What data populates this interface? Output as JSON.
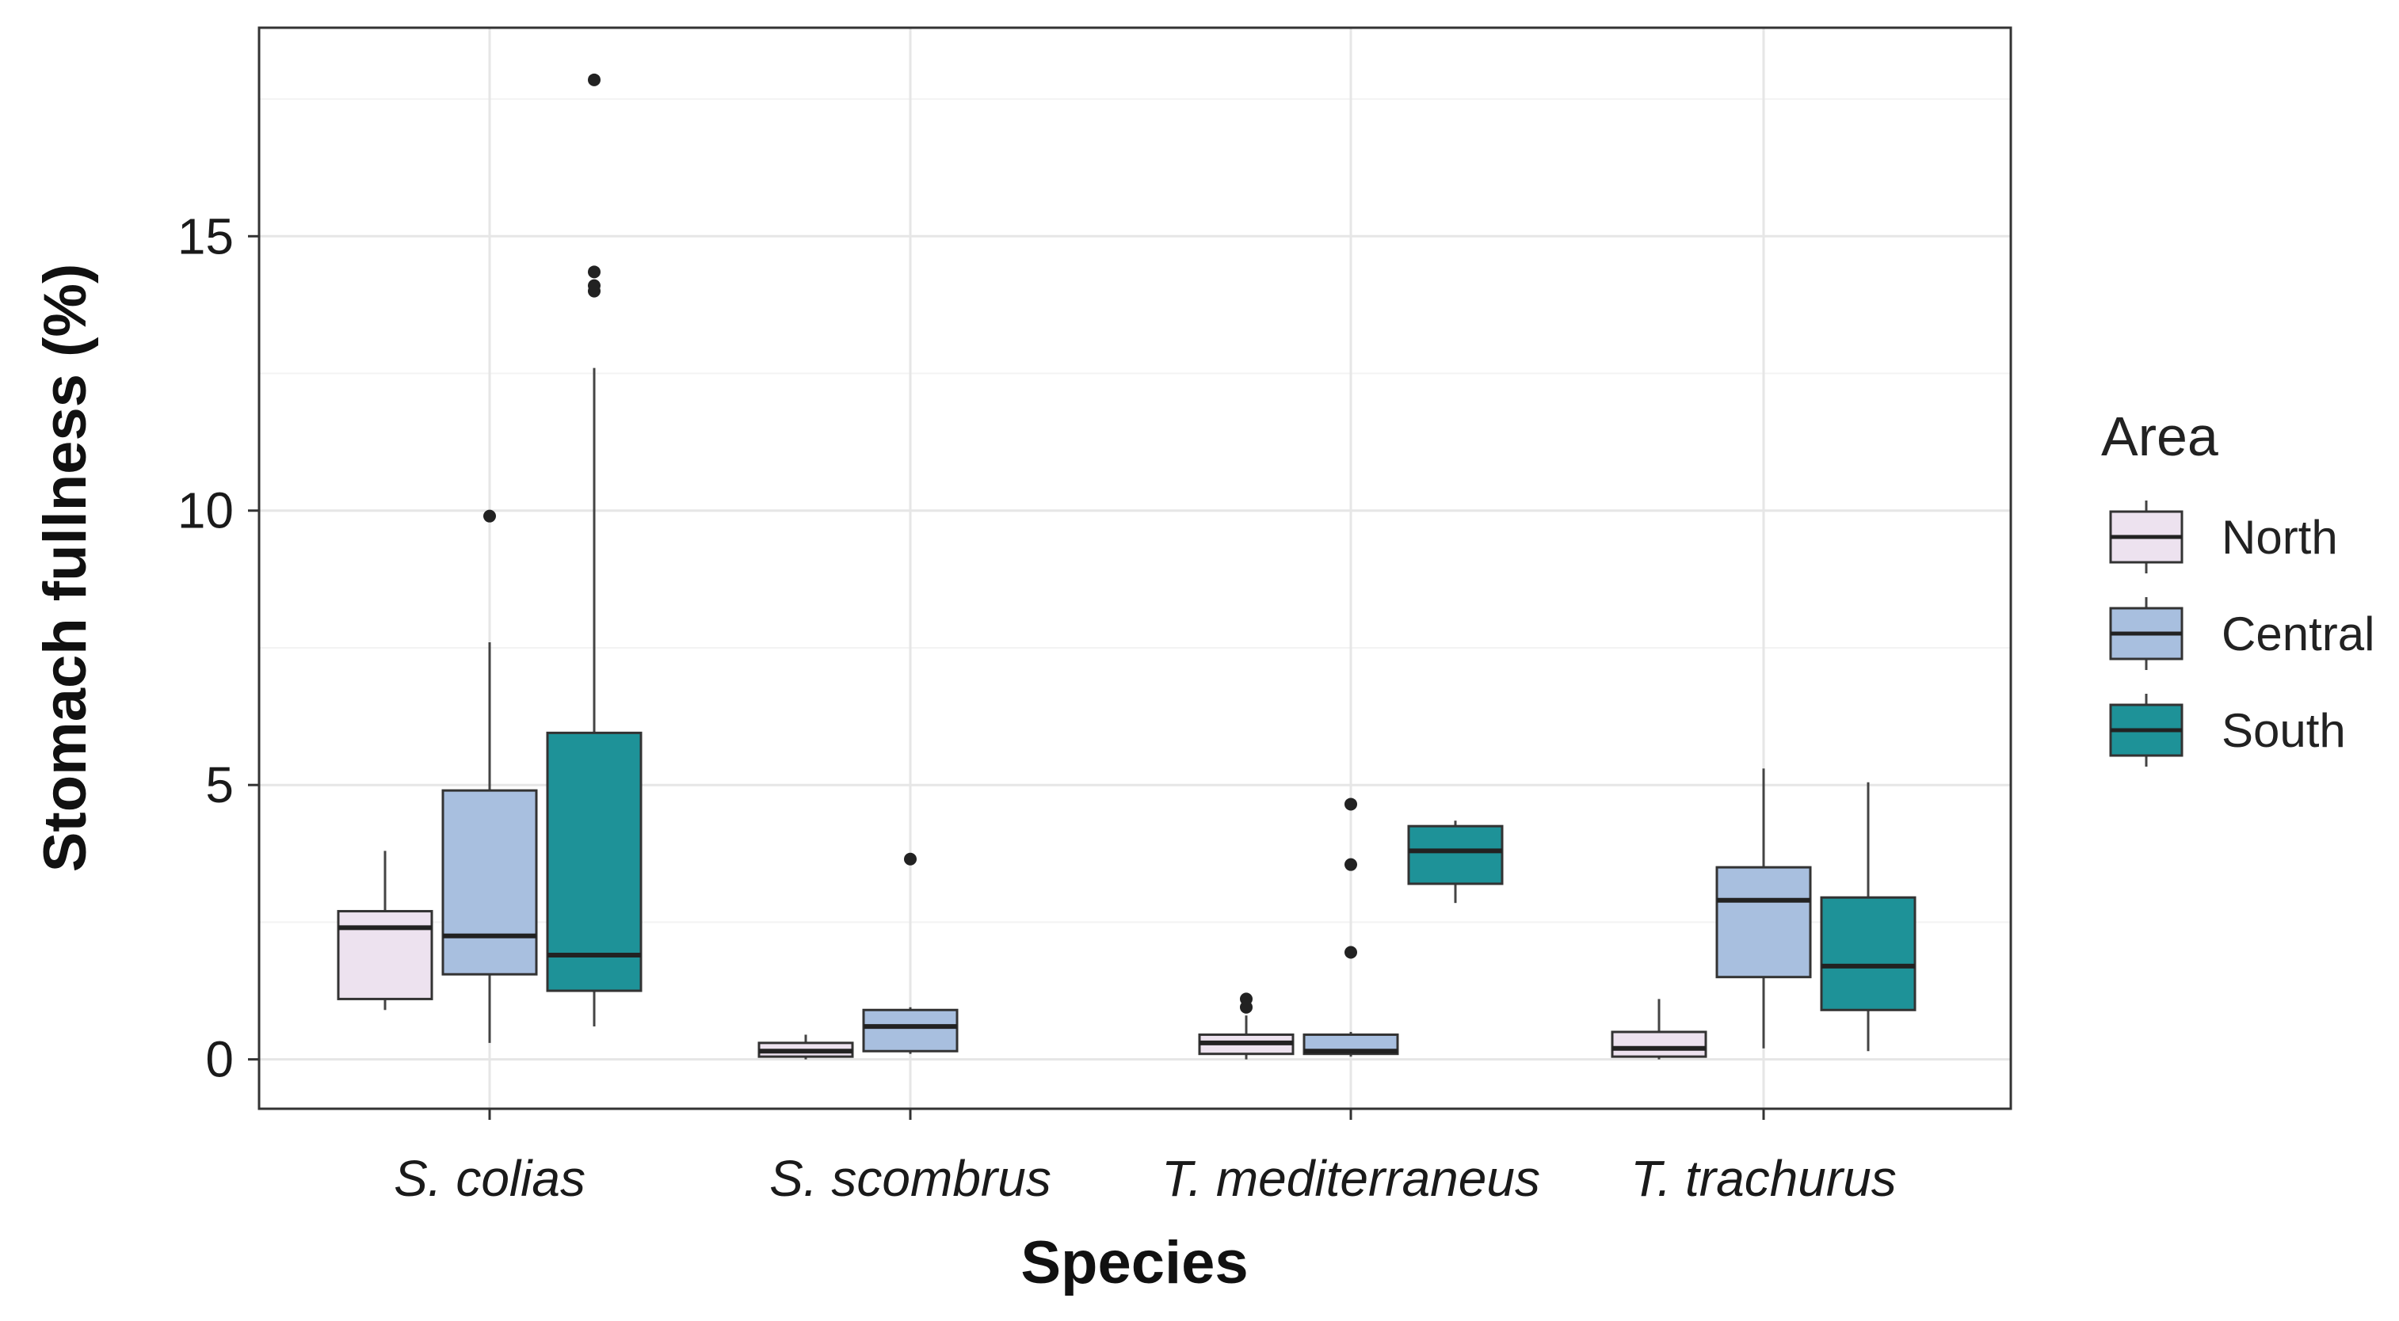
{
  "chart_data": {
    "type": "boxplot",
    "xlabel": "Species",
    "ylabel": "Stomach fullness (%)",
    "ylim": [
      -0.9,
      18.8
    ],
    "y_ticks": [
      0,
      5,
      10,
      15
    ],
    "categories": [
      "S. colias",
      "S. scombrus",
      "T. mediterraneus",
      "T. trachurus"
    ],
    "legend": {
      "title": "Area",
      "position": "right",
      "entries": [
        {
          "name": "North",
          "color": "#ede2ef"
        },
        {
          "name": "Central",
          "color": "#a8bfdf"
        },
        {
          "name": "South",
          "color": "#1e9298"
        }
      ]
    },
    "series": [
      {
        "name": "North",
        "boxes": [
          {
            "category": "S. colias",
            "whisker_low": 0.9,
            "q1": 1.1,
            "median": 2.4,
            "q3": 2.7,
            "whisker_high": 3.8,
            "outliers": []
          },
          {
            "category": "S. scombrus",
            "whisker_low": 0.0,
            "q1": 0.05,
            "median": 0.15,
            "q3": 0.3,
            "whisker_high": 0.45,
            "outliers": []
          },
          {
            "category": "T. mediterraneus",
            "whisker_low": 0.0,
            "q1": 0.1,
            "median": 0.3,
            "q3": 0.45,
            "whisker_high": 0.8,
            "outliers": [
              0.95,
              1.1
            ]
          },
          {
            "category": "T. trachurus",
            "whisker_low": 0.0,
            "q1": 0.05,
            "median": 0.2,
            "q3": 0.5,
            "whisker_high": 1.1,
            "outliers": []
          }
        ]
      },
      {
        "name": "Central",
        "boxes": [
          {
            "category": "S. colias",
            "whisker_low": 0.3,
            "q1": 1.55,
            "median": 2.25,
            "q3": 4.9,
            "whisker_high": 7.6,
            "outliers": [
              9.9
            ]
          },
          {
            "category": "S. scombrus",
            "whisker_low": 0.1,
            "q1": 0.15,
            "median": 0.6,
            "q3": 0.9,
            "whisker_high": 0.95,
            "outliers": [
              3.65
            ]
          },
          {
            "category": "T. mediterraneus",
            "whisker_low": 0.05,
            "q1": 0.1,
            "median": 0.15,
            "q3": 0.45,
            "whisker_high": 0.5,
            "outliers": [
              1.95,
              3.55,
              4.65
            ]
          },
          {
            "category": "T. trachurus",
            "whisker_low": 0.2,
            "q1": 1.5,
            "median": 2.9,
            "q3": 3.5,
            "whisker_high": 5.3,
            "outliers": []
          }
        ]
      },
      {
        "name": "South",
        "boxes": [
          {
            "category": "S. colias",
            "whisker_low": 0.6,
            "q1": 1.25,
            "median": 1.9,
            "q3": 5.95,
            "whisker_high": 12.6,
            "outliers": [
              14.0,
              14.1,
              14.35,
              17.85
            ]
          },
          {
            "category": "T. mediterraneus",
            "whisker_low": 2.85,
            "q1": 3.2,
            "median": 3.8,
            "q3": 4.25,
            "whisker_high": 4.35,
            "outliers": []
          },
          {
            "category": "T. trachurus",
            "whisker_low": 0.15,
            "q1": 0.9,
            "median": 1.7,
            "q3": 2.95,
            "whisker_high": 5.05,
            "outliers": []
          }
        ]
      }
    ]
  }
}
